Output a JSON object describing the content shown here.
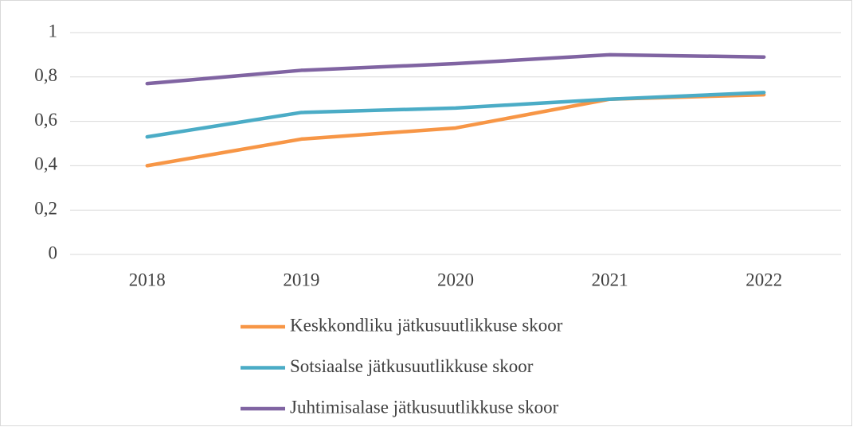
{
  "chart_data": {
    "type": "line",
    "categories": [
      "2018",
      "2019",
      "2020",
      "2021",
      "2022"
    ],
    "series": [
      {
        "name": "Keskkondliku jätkusuutlikkuse skoor",
        "color": "#f79646",
        "values": [
          0.4,
          0.52,
          0.57,
          0.7,
          0.72
        ]
      },
      {
        "name": "Sotsiaalse jätkusuutlikkuse skoor",
        "color": "#4bacc6",
        "values": [
          0.53,
          0.64,
          0.66,
          0.7,
          0.73
        ]
      },
      {
        "name": "Juhtimisalase jätkusuutlikkuse skoor",
        "color": "#8064a2",
        "values": [
          0.77,
          0.83,
          0.86,
          0.9,
          0.89
        ]
      }
    ],
    "ylim": [
      0,
      1
    ],
    "yticks": [
      0,
      {
        "value": 0.2,
        "label": "0,2"
      },
      {
        "value": 0.4,
        "label": "0,4"
      },
      {
        "value": 0.6,
        "label": "0,6"
      },
      {
        "value": 0.8,
        "label": "0,8"
      },
      1
    ],
    "grid": true,
    "legend": "bottom"
  }
}
